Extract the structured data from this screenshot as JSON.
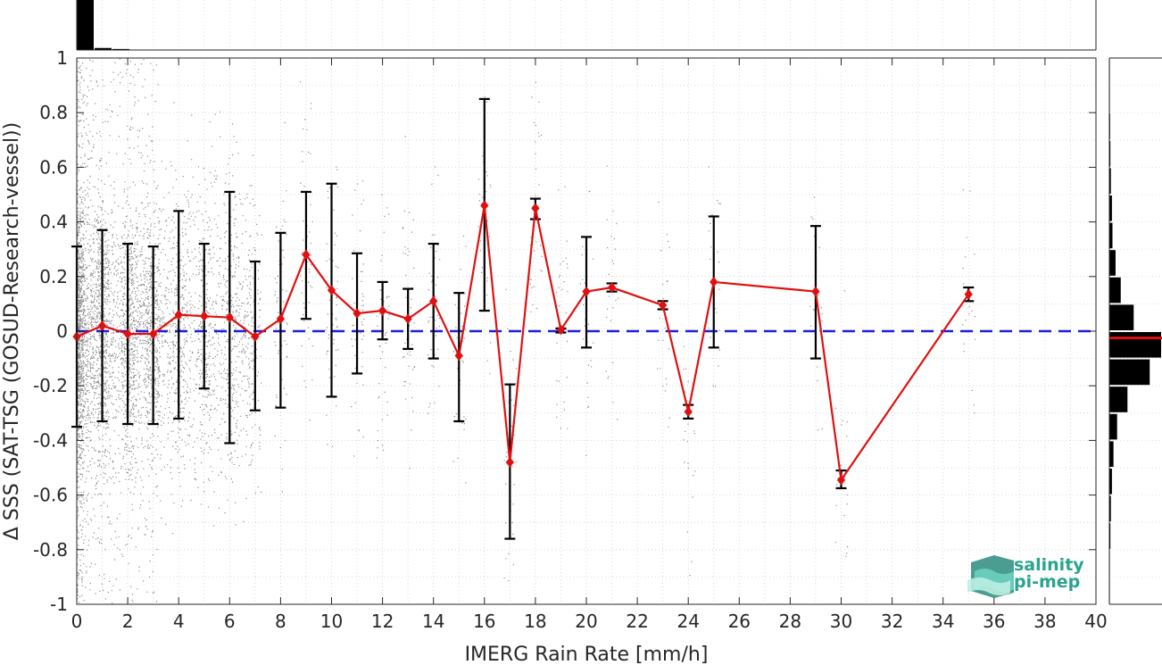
{
  "chart_data": {
    "type": "scatter",
    "xlabel": "IMERG Rain Rate [mm/h]",
    "ylabel": "Δ SSS (SAT-TSG (GOSUD-Research-vessel))",
    "xlim": [
      0,
      40
    ],
    "ylim": [
      -1,
      1
    ],
    "x_ticks": [
      "0",
      "2",
      "4",
      "6",
      "8",
      "10",
      "12",
      "14",
      "16",
      "18",
      "20",
      "22",
      "24",
      "26",
      "28",
      "30",
      "32",
      "34",
      "36",
      "38",
      "40"
    ],
    "y_ticks": [
      "-1",
      "-0.8",
      "-0.6",
      "-0.4",
      "-0.2",
      "0",
      "0.2",
      "0.4",
      "0.6",
      "0.8",
      "1"
    ],
    "grid": true,
    "reference_line": {
      "y": 0,
      "style": "dashed",
      "color": "#1f1fe0"
    },
    "series": [
      {
        "type": "line-errorbar",
        "color": "#e01010",
        "x": [
          0,
          1,
          2,
          3,
          4,
          5,
          6,
          7,
          8,
          9,
          10,
          11,
          12,
          13,
          14,
          15,
          16,
          17,
          18,
          19,
          20,
          21,
          23,
          24,
          25,
          29,
          30,
          35
        ],
        "y": [
          -0.02,
          0.02,
          -0.01,
          -0.01,
          0.06,
          0.055,
          0.05,
          -0.02,
          0.045,
          0.28,
          0.15,
          0.065,
          0.075,
          0.045,
          0.11,
          -0.09,
          0.46,
          -0.48,
          0.45,
          0.005,
          0.145,
          0.16,
          0.095,
          -0.295,
          0.18,
          0.145,
          -0.545,
          0.135
        ],
        "err_low": [
          -0.35,
          -0.33,
          -0.34,
          -0.34,
          -0.32,
          -0.21,
          -0.41,
          -0.29,
          -0.28,
          0.045,
          -0.24,
          -0.155,
          -0.03,
          -0.065,
          -0.1,
          -0.33,
          0.075,
          -0.76,
          0.41,
          -0.005,
          -0.06,
          0.145,
          0.08,
          -0.32,
          -0.06,
          -0.1,
          -0.575,
          0.11
        ],
        "err_high": [
          0.31,
          0.37,
          0.32,
          0.31,
          0.44,
          0.32,
          0.51,
          0.255,
          0.36,
          0.51,
          0.54,
          0.285,
          0.18,
          0.155,
          0.32,
          0.14,
          0.85,
          -0.195,
          0.485,
          0.01,
          0.345,
          0.175,
          0.11,
          -0.27,
          0.42,
          0.385,
          -0.51,
          0.16
        ]
      }
    ],
    "scatter_color": "#8c8c8c",
    "top_histogram": {
      "bins_x": [
        0,
        0.7,
        1.4
      ],
      "heights": [
        1.0,
        0.04,
        0.02
      ]
    },
    "right_histogram": {
      "bins_y": [
        0.95,
        0.85,
        0.75,
        0.65,
        0.55,
        0.45,
        0.35,
        0.25,
        0.15,
        0.05,
        -0.05,
        -0.15,
        -0.25,
        -0.35,
        -0.45,
        -0.55,
        -0.65,
        -0.75,
        -0.85,
        -0.95
      ],
      "widths": [
        0.01,
        0.01,
        0.015,
        0.02,
        0.03,
        0.05,
        0.06,
        0.12,
        0.22,
        0.47,
        1.0,
        0.78,
        0.35,
        0.15,
        0.08,
        0.05,
        0.03,
        0.02,
        0.01,
        0.01
      ],
      "median_line": {
        "y": -0.025,
        "color": "#e01010"
      }
    }
  },
  "logo": {
    "line1": "salinity",
    "line2": "pi-mep"
  }
}
